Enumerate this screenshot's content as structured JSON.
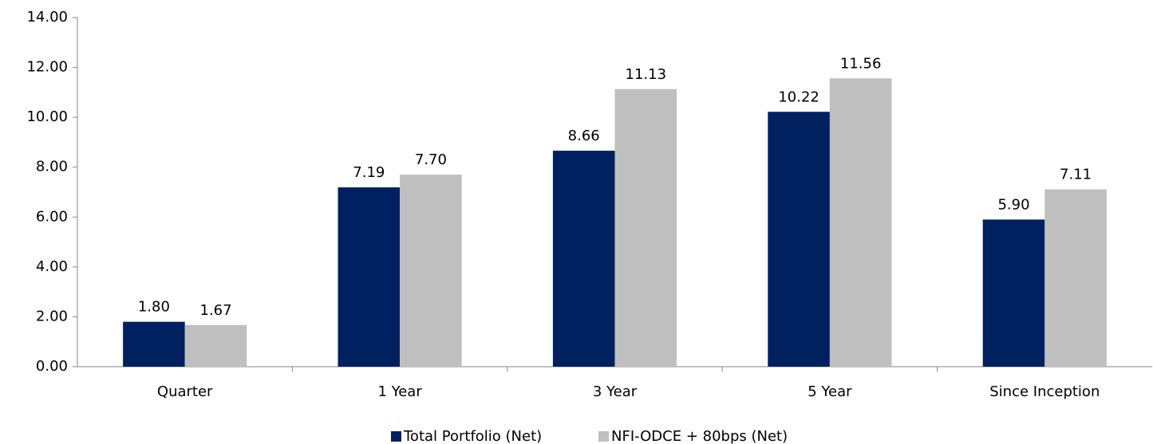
{
  "chart_data": {
    "type": "bar",
    "categories": [
      "Quarter",
      "1 Year",
      "3 Year",
      "5 Year",
      "Since Inception"
    ],
    "series": [
      {
        "name": "Total Portfolio (Net)",
        "color": "#002060",
        "values": [
          1.8,
          7.19,
          8.66,
          10.22,
          5.9
        ],
        "value_labels": [
          "1.80",
          "7.19",
          "8.66",
          "10.22",
          "5.90"
        ]
      },
      {
        "name": "NFI-ODCE + 80bps (Net)",
        "color": "#bfbfbf",
        "values": [
          1.67,
          7.7,
          11.13,
          11.56,
          7.11
        ],
        "value_labels": [
          "1.67",
          "7.70",
          "11.13",
          "11.56",
          "7.11"
        ]
      }
    ],
    "ylim": [
      0,
      14
    ],
    "yticks": [
      {
        "value": 0,
        "label": "0.00"
      },
      {
        "value": 2,
        "label": "2.00"
      },
      {
        "value": 4,
        "label": "4.00"
      },
      {
        "value": 6,
        "label": "6.00"
      },
      {
        "value": 8,
        "label": "8.00"
      },
      {
        "value": 10,
        "label": "10.00"
      },
      {
        "value": 12,
        "label": "12.00"
      },
      {
        "value": 14,
        "label": "14.00"
      }
    ],
    "grid": false,
    "legend": "bottom"
  }
}
